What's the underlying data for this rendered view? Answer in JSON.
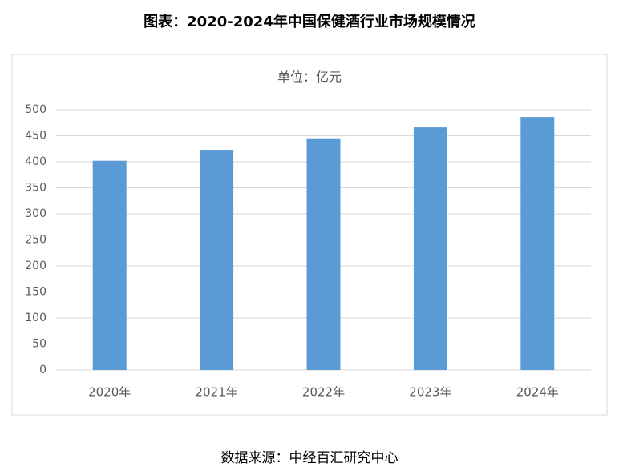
{
  "chart_data": {
    "type": "bar",
    "title": "图表：2020-2024年中国保健酒行业市场规模情况",
    "subtitle": "单位：亿元",
    "categories": [
      "2020年",
      "2021年",
      "2022年",
      "2023年",
      "2024年"
    ],
    "values": [
      402,
      423,
      445,
      466,
      486
    ],
    "color": "#5b9bd5",
    "ylim": [
      0,
      500
    ],
    "yticks": [
      0,
      50,
      100,
      150,
      200,
      250,
      300,
      350,
      400,
      450,
      500
    ],
    "grid": true,
    "source": "数据来源：中经百汇研究中心"
  }
}
